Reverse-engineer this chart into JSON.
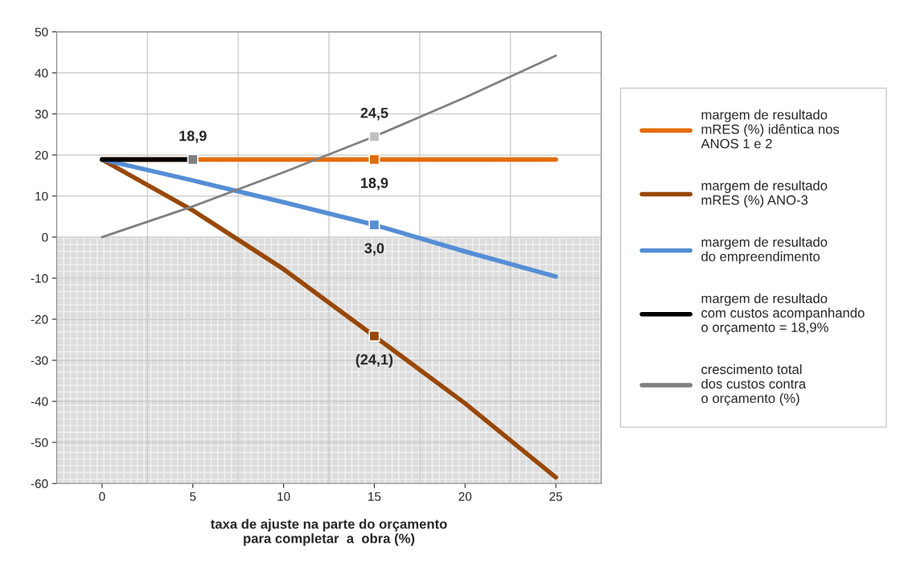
{
  "chart_data": {
    "type": "line",
    "xlabel": "taxa de ajuste na parte do orçamento\npara completar  a  obra (%)",
    "categories": [
      "0",
      "5",
      "10",
      "15",
      "20",
      "25"
    ],
    "ylim": [
      -60,
      50
    ],
    "yticks": [
      -60,
      -50,
      -40,
      -30,
      -20,
      -10,
      0,
      10,
      20,
      30,
      40,
      50
    ],
    "grid": true,
    "legend": "right",
    "marker": "none",
    "bands": [
      {
        "axis": "y",
        "from": -60,
        "to": 0,
        "color": "#dcdcdc"
      }
    ],
    "series": [
      {
        "name": "margem de resultado\nmRES (%) idêntica nos\nANOS 1 e 2",
        "color": "#e46c0a",
        "values": [
          18.9,
          18.9,
          18.9,
          18.9,
          18.9,
          18.9
        ]
      },
      {
        "name": "margem de resultado\nmRES (%) ANO-3",
        "color": "#984807",
        "values": [
          18.9,
          6.5,
          -7.8,
          -24.1,
          -40.5,
          -58.5
        ]
      },
      {
        "name": "margem de resultado\ndo empreendimento",
        "color": "#558ed5",
        "values": [
          18.9,
          13.8,
          8.5,
          3.0,
          -3.5,
          -9.6
        ]
      },
      {
        "name": "margem de resultado\ncom custos acompanhando\no orçamento = 18,9%",
        "color": "#000000",
        "values": [
          18.9,
          18.9,
          null,
          null,
          null,
          null
        ]
      },
      {
        "name": "crescimento total\ndos custos contra\no orçamento (%)",
        "color": "#808080",
        "values": [
          0,
          7.5,
          15.8,
          24.5,
          34.0,
          44.2
        ]
      },
      {
        "type": "scatter",
        "marker": "square",
        "color": "#e46c0a",
        "values": [
          null,
          null,
          null,
          18.9,
          null,
          null
        ]
      },
      {
        "type": "scatter",
        "marker": "square",
        "color": "#984807",
        "values": [
          null,
          null,
          null,
          -24.1,
          null,
          null
        ]
      },
      {
        "type": "scatter",
        "marker": "square",
        "color": "#558ed5",
        "values": [
          null,
          null,
          null,
          3.0,
          null,
          null
        ]
      },
      {
        "type": "scatter",
        "marker": "square",
        "color": "#7f7f7f",
        "values": [
          null,
          18.9,
          null,
          null,
          null,
          null
        ]
      },
      {
        "type": "scatter",
        "marker": "square",
        "color": "#c0c0c0",
        "values": [
          null,
          null,
          null,
          24.5,
          null,
          null
        ]
      }
    ],
    "annotations": [
      {
        "text": "18,9",
        "x": "5",
        "y": 18.9
      },
      {
        "text": "24,5",
        "x": "15",
        "y": 24.5
      },
      {
        "text": "18,9",
        "x": "15",
        "y": 18.9
      },
      {
        "text": "3,0",
        "x": "15",
        "y": 3.0
      },
      {
        "text": "(24,1)",
        "x": "15",
        "y": -24.1
      }
    ]
  }
}
